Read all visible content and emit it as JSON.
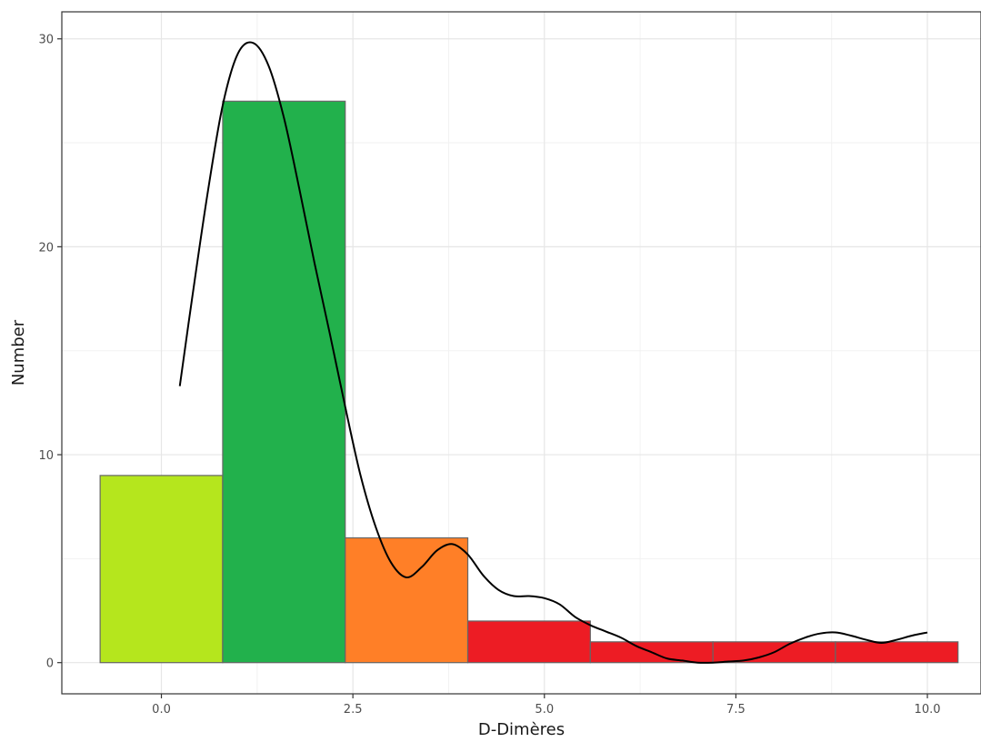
{
  "chart_data": {
    "type": "bar",
    "subtype": "histogram-with-density",
    "title": "",
    "xlabel": "D-Dimères",
    "ylabel": "Number",
    "xlim": [
      -1.3,
      10.7
    ],
    "ylim": [
      -1.5,
      31.3
    ],
    "x_ticks": [
      0.0,
      2.5,
      5.0,
      7.5,
      10.0
    ],
    "x_tick_labels": [
      "0.0",
      "2.5",
      "5.0",
      "7.5",
      "10.0"
    ],
    "y_ticks": [
      0,
      10,
      20,
      30
    ],
    "y_tick_labels": [
      "0",
      "10",
      "20",
      "30"
    ],
    "grid": true,
    "bins": [
      {
        "x_start": -0.8,
        "x_end": 0.8,
        "count": 9,
        "color": "#b5e61d"
      },
      {
        "x_start": 0.8,
        "x_end": 2.4,
        "count": 27,
        "color": "#22b14c"
      },
      {
        "x_start": 2.4,
        "x_end": 4.0,
        "count": 6,
        "color": "#ff7f27"
      },
      {
        "x_start": 4.0,
        "x_end": 5.6,
        "count": 2,
        "color": "#ed1c24"
      },
      {
        "x_start": 5.6,
        "x_end": 7.2,
        "count": 1,
        "color": "#ed1c24"
      },
      {
        "x_start": 7.2,
        "x_end": 8.8,
        "count": 1,
        "color": "#ed1c24"
      },
      {
        "x_start": 8.8,
        "x_end": 10.4,
        "count": 1,
        "color": "#ed1c24"
      }
    ],
    "density_curve": {
      "x": [
        0.24,
        0.4,
        0.6,
        0.8,
        1.0,
        1.2,
        1.4,
        1.6,
        1.8,
        2.0,
        2.2,
        2.4,
        2.6,
        2.8,
        3.0,
        3.2,
        3.4,
        3.6,
        3.8,
        4.0,
        4.2,
        4.4,
        4.6,
        4.8,
        5.0,
        5.2,
        5.4,
        5.6,
        5.8,
        6.0,
        6.2,
        6.4,
        6.6,
        6.8,
        7.0,
        7.2,
        7.4,
        7.6,
        7.8,
        8.0,
        8.2,
        8.4,
        8.6,
        8.8,
        9.0,
        9.2,
        9.4,
        9.6,
        9.8,
        10.0
      ],
      "y": [
        13.3,
        17.5,
        22.5,
        26.8,
        29.3,
        29.8,
        28.7,
        26.2,
        22.8,
        19.2,
        15.8,
        12.3,
        9.0,
        6.5,
        4.8,
        4.1,
        4.6,
        5.4,
        5.7,
        5.2,
        4.2,
        3.5,
        3.2,
        3.2,
        3.1,
        2.8,
        2.2,
        1.8,
        1.5,
        1.2,
        0.8,
        0.5,
        0.2,
        0.1,
        0.0,
        0.0,
        0.05,
        0.1,
        0.25,
        0.5,
        0.9,
        1.2,
        1.4,
        1.45,
        1.3,
        1.1,
        0.95,
        1.1,
        1.3,
        1.45
      ],
      "color": "#000000"
    },
    "colors": {
      "background": "#ffffff",
      "grid_major": "#e6e6e6",
      "grid_minor": "#f2f2f2",
      "panel_border": "#333333",
      "bar_outline": "#666666"
    }
  }
}
